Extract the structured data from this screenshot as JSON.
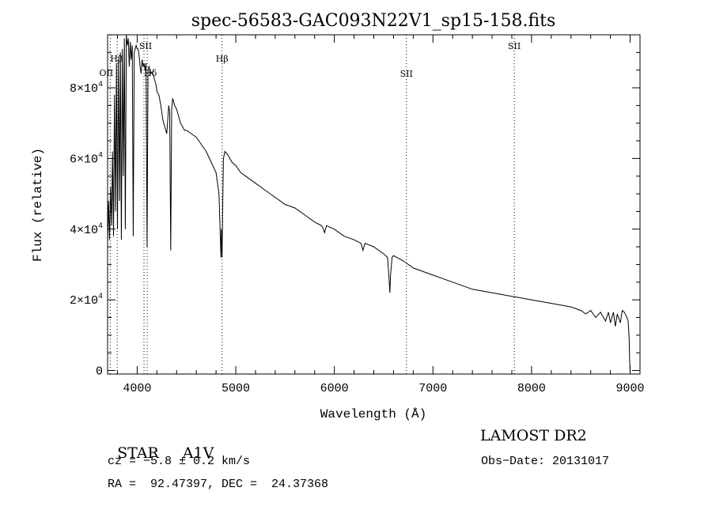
{
  "chart_data": {
    "type": "line",
    "title": "spec-56583-GAC093N22V1_sp15-158.fits",
    "xlabel": "Wavelength (Å)",
    "ylabel": "Flux (relative)",
    "xlim": [
      3700,
      9100
    ],
    "ylim": [
      -1000,
      95000
    ],
    "xticks": [
      4000,
      5000,
      6000,
      7000,
      8000,
      9000
    ],
    "xtick_labels": [
      "4000",
      "5000",
      "6000",
      "7000",
      "8000",
      "9000"
    ],
    "yticks": [
      0,
      20000,
      40000,
      60000,
      80000
    ],
    "ytick_labels": [
      "0",
      "2×10",
      "4×10",
      "6×10",
      "8×10"
    ],
    "ytick_exponent": "4",
    "series": [
      {
        "x": [
          3700,
          3710,
          3720,
          3730,
          3740,
          3750,
          3760,
          3770,
          3780,
          3790,
          3800,
          3810,
          3820,
          3830,
          3840,
          3850,
          3860,
          3870,
          3880,
          3890,
          3900,
          3910,
          3920,
          3930,
          3940,
          3950,
          3960,
          3970,
          3980,
          3990,
          4000,
          4010,
          4020,
          4030,
          4040,
          4050,
          4060,
          4070,
          4080,
          4090,
          4100,
          4110,
          4120,
          4130,
          4140,
          4150,
          4160,
          4170,
          4180,
          4190,
          4200,
          4220,
          4240,
          4260,
          4280,
          4300,
          4320,
          4330,
          4340,
          4350,
          4360,
          4380,
          4400,
          4420,
          4440,
          4460,
          4480,
          4500,
          4550,
          4600,
          4650,
          4700,
          4750,
          4800,
          4830,
          4850,
          4855,
          4861,
          4867,
          4875,
          4890,
          4920,
          4960,
          5000,
          5050,
          5100,
          5150,
          5200,
          5300,
          5400,
          5500,
          5600,
          5700,
          5800,
          5870,
          5890,
          5900,
          5920,
          6000,
          6100,
          6200,
          6270,
          6290,
          6310,
          6400,
          6500,
          6540,
          6555,
          6563,
          6570,
          6585,
          6600,
          6700,
          6800,
          6900,
          7000,
          7100,
          7200,
          7300,
          7400,
          7500,
          7600,
          7700,
          7800,
          7900,
          8000,
          8100,
          8200,
          8300,
          8400,
          8500,
          8550,
          8600,
          8650,
          8700,
          8750,
          8780,
          8800,
          8830,
          8850,
          8870,
          8900,
          8920,
          8940,
          8960,
          8980,
          8990,
          8995,
          9000
        ],
        "y": [
          36000,
          48000,
          37000,
          52000,
          41000,
          62000,
          38000,
          78000,
          45000,
          87000,
          40000,
          88000,
          48000,
          90000,
          37000,
          91000,
          55000,
          94000,
          40000,
          95000,
          92000,
          94000,
          86000,
          93000,
          88000,
          92000,
          38000,
          90000,
          91000,
          92000,
          91000,
          91000,
          89000,
          86000,
          84000,
          88000,
          86000,
          87000,
          85000,
          87000,
          35000,
          85000,
          86000,
          85000,
          84000,
          84500,
          84000,
          83000,
          82000,
          81000,
          79000,
          78000,
          75000,
          71000,
          69000,
          67000,
          75000,
          73000,
          34000,
          74000,
          77000,
          75000,
          74000,
          72000,
          70000,
          69000,
          68000,
          68000,
          67000,
          66000,
          64000,
          62000,
          59000,
          56000,
          50000,
          32000,
          40000,
          32000,
          45000,
          60000,
          62000,
          61000,
          59000,
          58000,
          56000,
          55000,
          54000,
          53000,
          51000,
          49000,
          47000,
          46000,
          44000,
          42000,
          41000,
          40000,
          39000,
          41000,
          40000,
          38000,
          37000,
          36000,
          34000,
          36000,
          35000,
          33000,
          32000,
          26000,
          22000,
          27000,
          32000,
          32500,
          31000,
          29000,
          28000,
          27000,
          26000,
          25000,
          24000,
          23000,
          22500,
          22000,
          21500,
          21000,
          20500,
          20000,
          19500,
          19000,
          18500,
          18000,
          17000,
          16000,
          17000,
          15000,
          16500,
          14000,
          16500,
          13500,
          16500,
          12500,
          16000,
          13500,
          17000,
          16500,
          15500,
          14000,
          9000,
          3000,
          -500
        ]
      }
    ],
    "lines": [
      {
        "label": "OII",
        "x": 3727
      },
      {
        "label": "Hβ",
        "x": 3798
      },
      {
        "label": "SII",
        "x": 4069
      },
      {
        "label": "Hδ",
        "x": 4102
      },
      {
        "label": "Hβ",
        "x": 4861
      },
      {
        "label": "SII",
        "x": 6731
      },
      {
        "label": "SII",
        "x": 7825
      }
    ]
  },
  "info": {
    "class_label": "STAR",
    "subclass": "A1V",
    "survey": "LAMOST DR2",
    "cz": "cz = −5.8 ± 0.2 km/s",
    "obs_date": "Obs−Date: 20131017",
    "coords": "RA =  92.47397, DEC =  24.37368"
  }
}
